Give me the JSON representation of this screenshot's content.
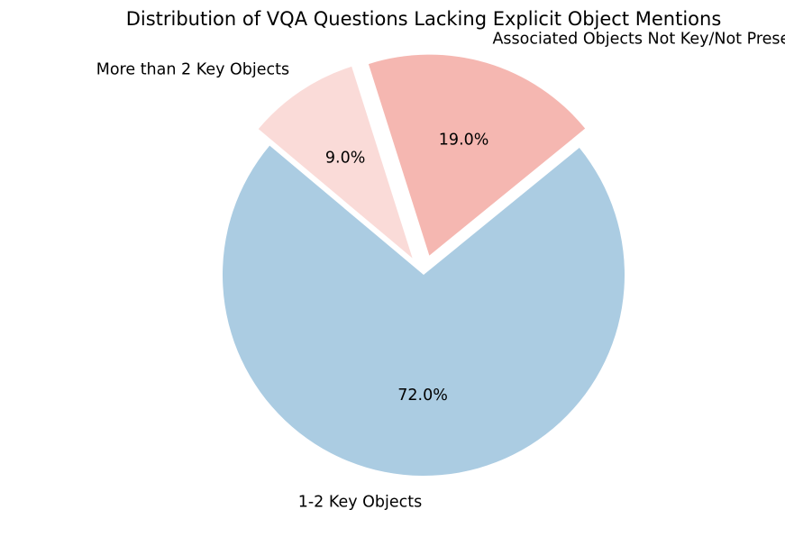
{
  "chart_data": {
    "type": "pie",
    "title": "Distribution of VQA Questions Lacking Explicit Object Mentions",
    "slices": [
      {
        "label": "1-2 Key Objects",
        "value": 72.0,
        "pct_label": "72.0%",
        "color": "#abcce2",
        "exploded": false
      },
      {
        "label": "Associated Objects Not Key/Not Present",
        "value": 19.0,
        "pct_label": "19.0%",
        "color": "#f5b7b1",
        "exploded": true
      },
      {
        "label": "More than 2 Key Objects",
        "value": 9.0,
        "pct_label": "9.0%",
        "color": "#fadbd8",
        "exploded": true
      }
    ],
    "start_angle_deg": 140,
    "direction": "counterclockwise",
    "legend": "none"
  }
}
